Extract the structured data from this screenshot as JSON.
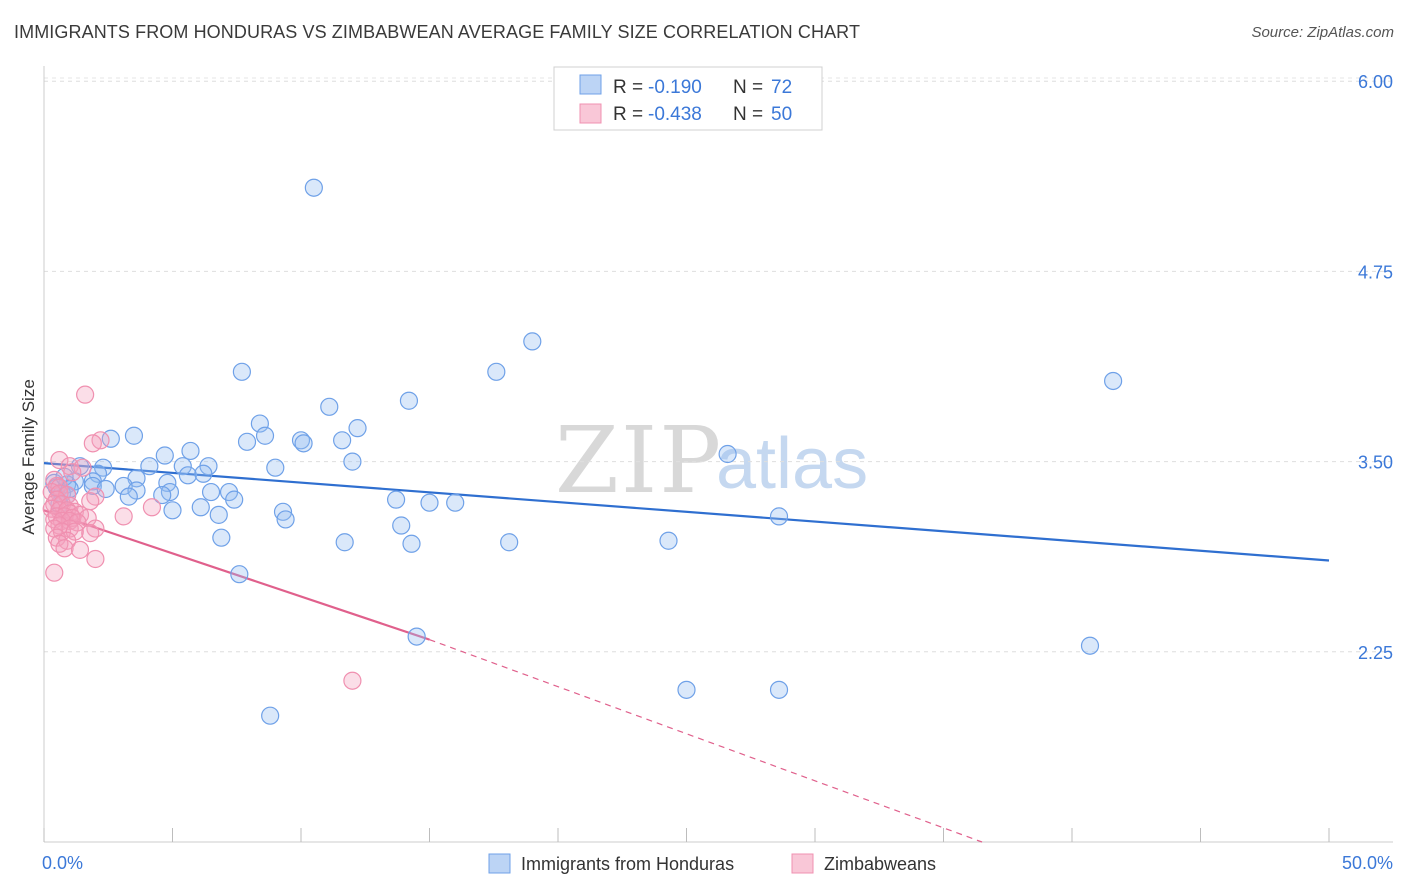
{
  "title": "IMMIGRANTS FROM HONDURAS VS ZIMBABWEAN AVERAGE FAMILY SIZE CORRELATION CHART",
  "source": "Source: ZipAtlas.com",
  "watermark": {
    "zip": "ZIP",
    "atlas": "atlas"
  },
  "chart_data": {
    "type": "scatter",
    "title": "IMMIGRANTS FROM HONDURAS VS ZIMBABWEAN AVERAGE FAMILY SIZE CORRELATION CHART",
    "xlabel": "",
    "ylabel": "Average Family Size",
    "xlim": [
      0,
      50
    ],
    "ylim": [
      1.0,
      6.1
    ],
    "x_tick_labels": [
      "0.0%",
      "50.0%"
    ],
    "y_ticks": [
      2.25,
      3.5,
      4.75,
      6.0
    ],
    "y_tick_labels": [
      "2.25",
      "3.50",
      "4.75",
      "6.00"
    ],
    "grid": true,
    "legend_position": "top-center",
    "series": [
      {
        "name": "Immigrants from Honduras",
        "color": "#6fa1e8",
        "line_color": "#2f6fd0",
        "R": "-0.190",
        "N": "72",
        "trend": {
          "x": [
            0,
            50
          ],
          "y": [
            3.49,
            2.85
          ]
        },
        "points": [
          [
            10.5,
            5.3
          ],
          [
            19.0,
            4.29
          ],
          [
            7.7,
            4.09
          ],
          [
            17.6,
            4.09
          ],
          [
            41.6,
            4.03
          ],
          [
            11.1,
            3.86
          ],
          [
            14.2,
            3.9
          ],
          [
            8.4,
            3.75
          ],
          [
            12.2,
            3.72
          ],
          [
            3.5,
            3.67
          ],
          [
            2.6,
            3.65
          ],
          [
            8.6,
            3.67
          ],
          [
            10.0,
            3.64
          ],
          [
            7.9,
            3.63
          ],
          [
            11.6,
            3.64
          ],
          [
            10.1,
            3.62
          ],
          [
            5.7,
            3.57
          ],
          [
            4.7,
            3.54
          ],
          [
            12.0,
            3.5
          ],
          [
            26.6,
            3.55
          ],
          [
            4.1,
            3.47
          ],
          [
            5.4,
            3.47
          ],
          [
            6.4,
            3.47
          ],
          [
            9.0,
            3.46
          ],
          [
            2.3,
            3.46
          ],
          [
            1.4,
            3.47
          ],
          [
            2.1,
            3.42
          ],
          [
            5.6,
            3.41
          ],
          [
            6.2,
            3.42
          ],
          [
            3.6,
            3.39
          ],
          [
            1.2,
            3.37
          ],
          [
            1.9,
            3.37
          ],
          [
            0.9,
            3.35
          ],
          [
            3.1,
            3.34
          ],
          [
            4.8,
            3.36
          ],
          [
            1.9,
            3.34
          ],
          [
            0.5,
            3.33
          ],
          [
            2.4,
            3.32
          ],
          [
            3.6,
            3.31
          ],
          [
            4.9,
            3.3
          ],
          [
            6.5,
            3.3
          ],
          [
            7.2,
            3.3
          ],
          [
            0.7,
            3.29
          ],
          [
            0.9,
            3.28
          ],
          [
            3.3,
            3.27
          ],
          [
            4.6,
            3.28
          ],
          [
            7.4,
            3.25
          ],
          [
            13.7,
            3.25
          ],
          [
            15.0,
            3.23
          ],
          [
            16.0,
            3.23
          ],
          [
            0.6,
            3.22
          ],
          [
            6.1,
            3.2
          ],
          [
            5.0,
            3.18
          ],
          [
            9.3,
            3.17
          ],
          [
            6.8,
            3.15
          ],
          [
            28.6,
            3.14
          ],
          [
            9.4,
            3.12
          ],
          [
            13.9,
            3.08
          ],
          [
            6.9,
            3.0
          ],
          [
            11.7,
            2.97
          ],
          [
            14.3,
            2.96
          ],
          [
            18.1,
            2.97
          ],
          [
            24.3,
            2.98
          ],
          [
            7.6,
            2.76
          ],
          [
            14.5,
            2.35
          ],
          [
            40.7,
            2.29
          ],
          [
            25.0,
            2.0
          ],
          [
            28.6,
            2.0
          ],
          [
            8.8,
            1.83
          ],
          [
            0.4,
            3.36
          ],
          [
            0.8,
            3.4
          ],
          [
            1.0,
            3.32
          ]
        ]
      },
      {
        "name": "Zimbabweans",
        "color": "#f090b0",
        "line_color": "#e0608c",
        "R": "-0.438",
        "N": "50",
        "trend": {
          "x": [
            0,
            15
          ],
          "y": [
            3.18,
            2.33
          ],
          "dashed_to": {
            "x": 36.5,
            "y": 1.0
          }
        },
        "points": [
          [
            1.6,
            3.94
          ],
          [
            2.2,
            3.64
          ],
          [
            1.9,
            3.62
          ],
          [
            0.6,
            3.51
          ],
          [
            1.0,
            3.47
          ],
          [
            1.5,
            3.46
          ],
          [
            1.1,
            3.43
          ],
          [
            0.4,
            3.38
          ],
          [
            0.5,
            3.34
          ],
          [
            0.6,
            3.33
          ],
          [
            0.3,
            3.3
          ],
          [
            0.6,
            3.29
          ],
          [
            0.9,
            3.28
          ],
          [
            2.0,
            3.27
          ],
          [
            0.5,
            3.25
          ],
          [
            1.8,
            3.24
          ],
          [
            0.4,
            3.22
          ],
          [
            0.7,
            3.22
          ],
          [
            1.0,
            3.21
          ],
          [
            4.2,
            3.2
          ],
          [
            0.3,
            3.19
          ],
          [
            0.6,
            3.18
          ],
          [
            0.9,
            3.18
          ],
          [
            1.2,
            3.17
          ],
          [
            1.0,
            3.16
          ],
          [
            1.4,
            3.15
          ],
          [
            0.5,
            3.14
          ],
          [
            0.8,
            3.14
          ],
          [
            1.1,
            3.13
          ],
          [
            3.1,
            3.14
          ],
          [
            1.7,
            3.13
          ],
          [
            0.4,
            3.12
          ],
          [
            0.7,
            3.11
          ],
          [
            1.0,
            3.11
          ],
          [
            1.3,
            3.1
          ],
          [
            0.6,
            3.08
          ],
          [
            1.0,
            3.06
          ],
          [
            0.4,
            3.06
          ],
          [
            2.0,
            3.06
          ],
          [
            0.7,
            3.04
          ],
          [
            1.2,
            3.04
          ],
          [
            1.8,
            3.03
          ],
          [
            0.5,
            3.0
          ],
          [
            0.9,
            2.98
          ],
          [
            0.6,
            2.96
          ],
          [
            0.8,
            2.93
          ],
          [
            1.4,
            2.92
          ],
          [
            2.0,
            2.86
          ],
          [
            0.4,
            2.77
          ],
          [
            12.0,
            2.06
          ]
        ]
      }
    ]
  },
  "legend": {
    "r_label": "R =",
    "n_label": "N =",
    "rows": [
      {
        "r": "-0.190",
        "n": "72"
      },
      {
        "r": "-0.438",
        "n": "50"
      }
    ]
  },
  "bottom_legend": [
    "Immigrants from Honduras",
    "Zimbabweans"
  ]
}
